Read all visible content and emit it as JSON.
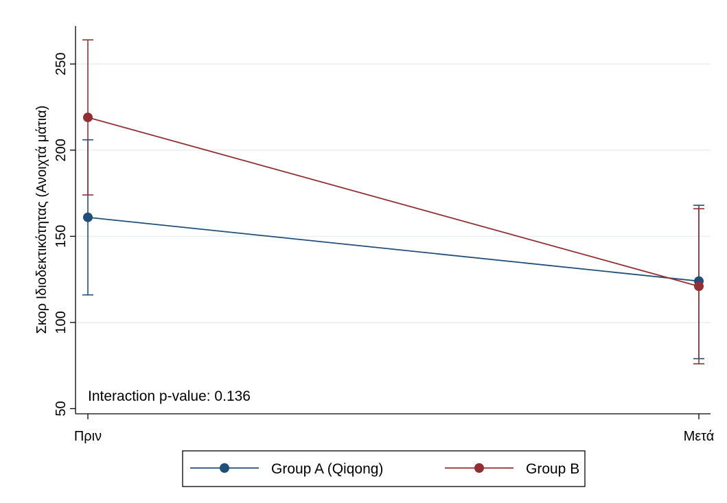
{
  "chart_data": {
    "type": "line",
    "categories": [
      "Πριν",
      "Μετά"
    ],
    "ylabel": "Σκορ Ιδιοδεκτικότητας (Ανοιχτά μάτια)",
    "xlabel": "",
    "yticks": [
      50,
      100,
      150,
      200,
      250
    ],
    "ylim": [
      47,
      272
    ],
    "grid": true,
    "legend_position": "bottom",
    "annotation": "Interaction p-value: 0.136",
    "series": [
      {
        "name": "Group A (Qiqong)",
        "color": "#1f4e79",
        "values": [
          161,
          124
        ],
        "ci_low": [
          116,
          79
        ],
        "ci_high": [
          206,
          168
        ]
      },
      {
        "name": "Group B",
        "color": "#903035",
        "values": [
          219,
          121
        ],
        "ci_low": [
          174,
          76
        ],
        "ci_high": [
          264,
          166
        ]
      }
    ]
  }
}
